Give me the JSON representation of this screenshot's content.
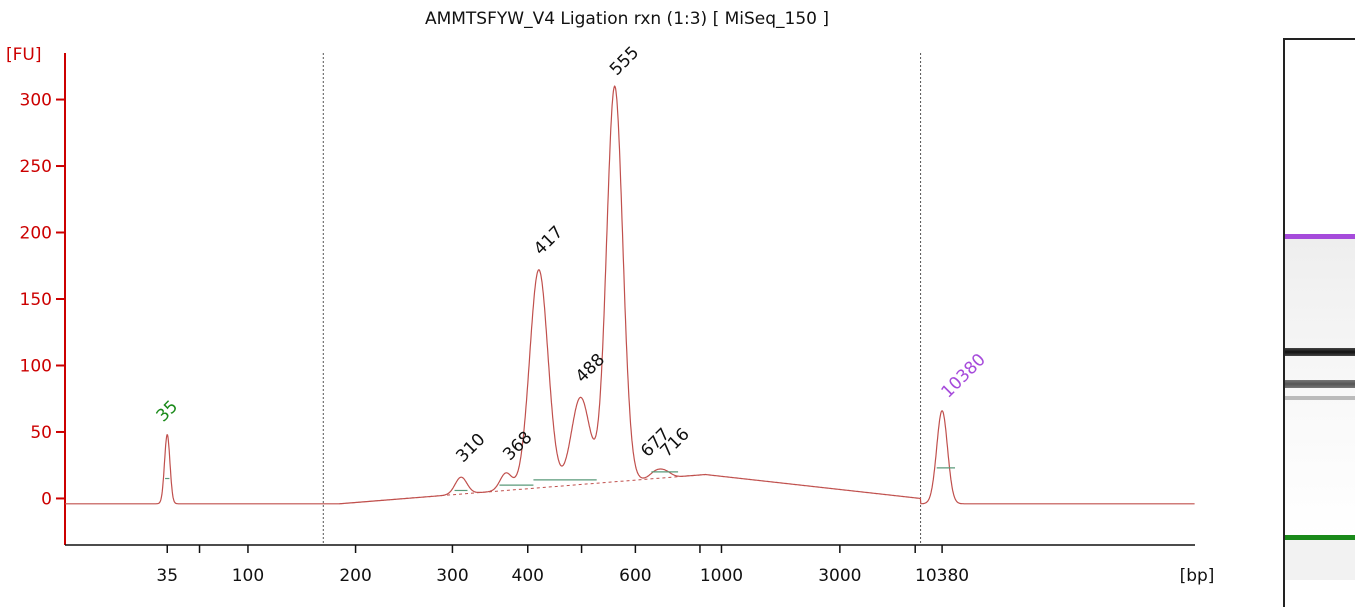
{
  "chart_data": {
    "type": "line",
    "title": "AMMTSFYW_V4 Ligation rxn (1:3)  [ MiSeq_150 ]",
    "ylabel": "[FU]",
    "xlabel": "[bp]",
    "ylim": [
      -35,
      335
    ],
    "yticks": [
      0,
      50,
      100,
      150,
      200,
      250,
      300
    ],
    "x_tick_labels": [
      "35",
      "100",
      "200",
      "300",
      "400",
      "600",
      "1000",
      "3000",
      "10380"
    ],
    "xlim_seconds": [
      20,
      125
    ],
    "x_ladder": [
      {
        "bp": 35,
        "s": 29.5
      },
      {
        "bp": 100,
        "s": 37
      },
      {
        "bp": 200,
        "s": 47
      },
      {
        "bp": 300,
        "s": 56
      },
      {
        "bp": 400,
        "s": 63
      },
      {
        "bp": 600,
        "s": 73
      },
      {
        "bp": 1000,
        "s": 81
      },
      {
        "bp": 3000,
        "s": 92
      },
      {
        "bp": 10380,
        "s": 101.5
      }
    ],
    "unlabeled_ticks_s": [
      32.5,
      68,
      79,
      99
    ],
    "region_lines_s": [
      44,
      99.5
    ],
    "peaks": [
      {
        "label": "35",
        "bp": 35,
        "height": 48,
        "color": "#1a8a1a"
      },
      {
        "label": "310",
        "bp": 310,
        "height": 16,
        "color": "#111111"
      },
      {
        "label": "368",
        "bp": 368,
        "height": 19,
        "color": "#111111"
      },
      {
        "label": "417",
        "bp": 417,
        "height": 172,
        "color": "#111111"
      },
      {
        "label": "488",
        "bp": 488,
        "height": 76,
        "color": "#111111"
      },
      {
        "label": "555",
        "bp": 555,
        "height": 310,
        "color": "#111111"
      },
      {
        "label": "677",
        "bp": 677,
        "height": 20,
        "color": "#111111"
      },
      {
        "label": "716",
        "bp": 716,
        "height": 20,
        "color": "#111111"
      },
      {
        "label": "10380",
        "bp": 10380,
        "height": 66,
        "color": "#a64bdb"
      }
    ],
    "trace_color": "#c0504d",
    "axis_color": "#cc0000",
    "baseline_color": "#5a9a7a",
    "gel_colors": {
      "upper_marker": "#a64bdb",
      "lower_marker": "#1a8a1a"
    }
  }
}
